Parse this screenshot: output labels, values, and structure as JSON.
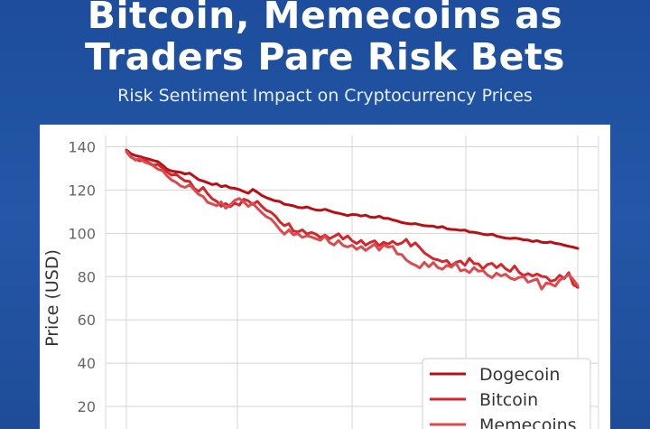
{
  "header": {
    "title_line1": "Bitcoin, Memecoins as",
    "title_line2": "Traders Pare Risk Bets",
    "subtitle": "Risk Sentiment Impact on Cryptocurrency Prices"
  },
  "chart_data": {
    "type": "line",
    "title": "",
    "xlabel": "",
    "ylabel": "Price (USD)",
    "ylim": [
      10,
      145
    ],
    "yticks": [
      20,
      40,
      60,
      80,
      100,
      120,
      140
    ],
    "grid": true,
    "legend_position": "bottom-right",
    "x": [
      0,
      1,
      2,
      3,
      4,
      5,
      6,
      7,
      8,
      9,
      10,
      11,
      12,
      13,
      14,
      15,
      16,
      17,
      18,
      19,
      20,
      21,
      22,
      23,
      24,
      25,
      26,
      27,
      28,
      29,
      30,
      31,
      32,
      33,
      34,
      35,
      36,
      37,
      38,
      39,
      40,
      41,
      42,
      43,
      44,
      45,
      46,
      47,
      48,
      49,
      50,
      51,
      52,
      53,
      54,
      55,
      56,
      57,
      58,
      59,
      60,
      61,
      62,
      63,
      64,
      65,
      66,
      67,
      68,
      69,
      70,
      71,
      72,
      73,
      74,
      75,
      76,
      77,
      78,
      79,
      80,
      81,
      82,
      83,
      84,
      85,
      86,
      87,
      88,
      89,
      90,
      91,
      92,
      93,
      94,
      95,
      96,
      97,
      98,
      99,
      100
    ],
    "series": [
      {
        "name": "Dogecoin",
        "color": "#b80f14",
        "values": [
          138.5,
          136.8,
          135.9,
          135.5,
          134.8,
          134.3,
          133.6,
          133.1,
          131.5,
          129.6,
          128.8,
          128.5,
          128.2,
          127.4,
          127.8,
          126.3,
          124.8,
          124.2,
          123.4,
          122.5,
          122.9,
          121.6,
          122.0,
          121.0,
          120.8,
          120.2,
          119.3,
          118.5,
          120.3,
          119.0,
          117.5,
          116.5,
          115.7,
          115.0,
          114.7,
          113.4,
          113.1,
          112.7,
          112.0,
          111.8,
          112.2,
          111.4,
          110.8,
          110.6,
          111.1,
          110.4,
          109.7,
          109.3,
          108.8,
          108.2,
          108.7,
          108.6,
          108.0,
          108.4,
          107.5,
          107.3,
          107.9,
          107.0,
          106.9,
          106.2,
          105.7,
          105.0,
          104.6,
          104.3,
          104.5,
          104.0,
          103.5,
          103.4,
          103.3,
          102.7,
          103.1,
          102.1,
          101.8,
          101.7,
          101.4,
          101.5,
          100.6,
          100.5,
          100.1,
          99.6,
          99.3,
          99.6,
          98.7,
          98.2,
          97.8,
          97.6,
          97.8,
          97.5,
          97.0,
          96.9,
          96.2,
          96.6,
          95.9,
          95.7,
          96.0,
          95.4,
          95.1,
          94.5,
          94.0,
          93.6,
          93.0
        ]
      },
      {
        "name": "Bitcoin",
        "color": "#d5262b",
        "values": [
          137.8,
          135.2,
          134.1,
          133.5,
          134.0,
          132.7,
          131.5,
          131.8,
          130.2,
          128.4,
          126.9,
          127.3,
          125.6,
          124.2,
          124.0,
          120.8,
          119.4,
          121.2,
          118.3,
          116.0,
          114.8,
          112.5,
          113.8,
          112.3,
          114.0,
          113.0,
          115.8,
          115.0,
          113.3,
          114.8,
          112.5,
          110.6,
          109.8,
          108.0,
          105.3,
          103.5,
          104.5,
          101.0,
          100.7,
          101.6,
          99.7,
          100.4,
          99.6,
          98.0,
          99.2,
          97.5,
          98.6,
          99.8,
          97.4,
          98.8,
          96.6,
          95.3,
          96.7,
          94.5,
          95.8,
          96.5,
          94.3,
          95.9,
          95.0,
          96.3,
          94.8,
          95.5,
          97.2,
          94.1,
          95.6,
          93.4,
          91.0,
          89.6,
          88.2,
          87.8,
          86.9,
          87.4,
          85.0,
          86.6,
          87.2,
          85.2,
          88.4,
          86.0,
          85.9,
          83.6,
          85.6,
          86.1,
          84.1,
          85.7,
          83.6,
          82.4,
          84.9,
          82.0,
          80.5,
          81.4,
          80.3,
          81.2,
          80.1,
          79.8,
          77.9,
          78.4,
          80.6,
          79.1,
          81.8,
          76.3,
          75.0
        ]
      },
      {
        "name": "Memecoins",
        "color": "#db4a4d",
        "values": [
          138.0,
          135.5,
          133.8,
          134.6,
          133.0,
          132.2,
          131.2,
          129.6,
          129.0,
          126.5,
          124.7,
          123.6,
          121.9,
          121.2,
          122.4,
          120.2,
          118.0,
          117.0,
          114.3,
          113.6,
          112.7,
          114.5,
          111.6,
          113.1,
          115.2,
          116.1,
          114.6,
          112.4,
          113.9,
          111.6,
          109.5,
          107.7,
          106.7,
          104.4,
          101.7,
          99.6,
          101.6,
          99.3,
          99.8,
          98.1,
          98.9,
          98.3,
          97.5,
          96.8,
          98.7,
          95.7,
          94.6,
          96.7,
          94.4,
          93.7,
          94.5,
          92.6,
          93.9,
          92.1,
          93.6,
          95.0,
          92.2,
          94.6,
          93.6,
          94.0,
          90.5,
          90.2,
          87.7,
          86.2,
          85.3,
          84.0,
          86.6,
          84.5,
          86.5,
          84.2,
          83.4,
          85.2,
          84.4,
          86.3,
          82.7,
          83.2,
          81.8,
          84.2,
          82.5,
          82.8,
          80.7,
          79.5,
          81.6,
          80.3,
          81.1,
          79.3,
          78.6,
          79.6,
          80.0,
          77.4,
          78.2,
          78.9,
          74.2,
          77.0,
          76.6,
          75.6,
          78.4,
          79.5,
          81.0,
          78.6,
          75.8
        ]
      }
    ]
  }
}
